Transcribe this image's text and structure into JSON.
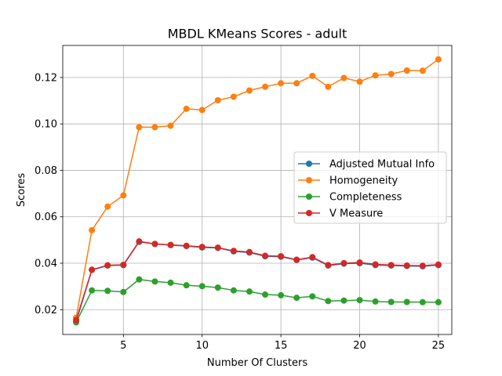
{
  "chart_data": {
    "type": "line",
    "title": "MBDL KMeans Scores - adult",
    "xlabel": "Number Of Clusters",
    "ylabel": "Scores",
    "xlim": [
      1.15,
      25.85
    ],
    "ylim": [
      0.0093,
      0.1338
    ],
    "xticks": [
      5,
      10,
      15,
      20,
      25
    ],
    "xtick_labels": [
      "5",
      "10",
      "15",
      "20",
      "25"
    ],
    "yticks": [
      0.02,
      0.04,
      0.06,
      0.08,
      0.1,
      0.12
    ],
    "ytick_labels": [
      "0.02",
      "0.04",
      "0.06",
      "0.08",
      "0.10",
      "0.12"
    ],
    "grid": true,
    "legend_position": "center-right",
    "x": [
      2,
      3,
      4,
      5,
      6,
      7,
      8,
      9,
      10,
      11,
      12,
      13,
      14,
      15,
      16,
      17,
      18,
      19,
      20,
      21,
      22,
      23,
      24,
      25
    ],
    "series": [
      {
        "name": "Adjusted Mutual Info",
        "color": "#1f77b4",
        "values": [
          0.0148,
          0.0371,
          0.039,
          0.0392,
          0.0492,
          0.0483,
          0.0478,
          0.0474,
          0.0468,
          0.0466,
          0.0451,
          0.0446,
          0.043,
          0.0428,
          0.0414,
          0.0424,
          0.039,
          0.0398,
          0.04,
          0.0392,
          0.039,
          0.0388,
          0.0387,
          0.0392
        ]
      },
      {
        "name": "Homogeneity",
        "color": "#ff7f0e",
        "values": [
          0.0165,
          0.0542,
          0.0644,
          0.0692,
          0.0986,
          0.0986,
          0.0992,
          0.1065,
          0.106,
          0.1102,
          0.1117,
          0.1144,
          0.116,
          0.1175,
          0.1175,
          0.1207,
          0.116,
          0.1198,
          0.1182,
          0.1209,
          0.1215,
          0.123,
          0.1229,
          0.1278
        ]
      },
      {
        "name": "Completeness",
        "color": "#2ca02c",
        "values": [
          0.0145,
          0.0283,
          0.0281,
          0.0276,
          0.033,
          0.0321,
          0.0316,
          0.0305,
          0.0301,
          0.0295,
          0.0283,
          0.0278,
          0.0265,
          0.0262,
          0.0251,
          0.0257,
          0.0237,
          0.0239,
          0.0241,
          0.0235,
          0.0233,
          0.0233,
          0.0232,
          0.0232
        ]
      },
      {
        "name": "V Measure",
        "color": "#d62728",
        "values": [
          0.0155,
          0.0372,
          0.0391,
          0.0393,
          0.0494,
          0.0483,
          0.0479,
          0.0475,
          0.047,
          0.0467,
          0.0453,
          0.0448,
          0.0432,
          0.043,
          0.0415,
          0.0426,
          0.0392,
          0.04,
          0.0403,
          0.0395,
          0.0392,
          0.039,
          0.0389,
          0.0394
        ]
      }
    ]
  }
}
